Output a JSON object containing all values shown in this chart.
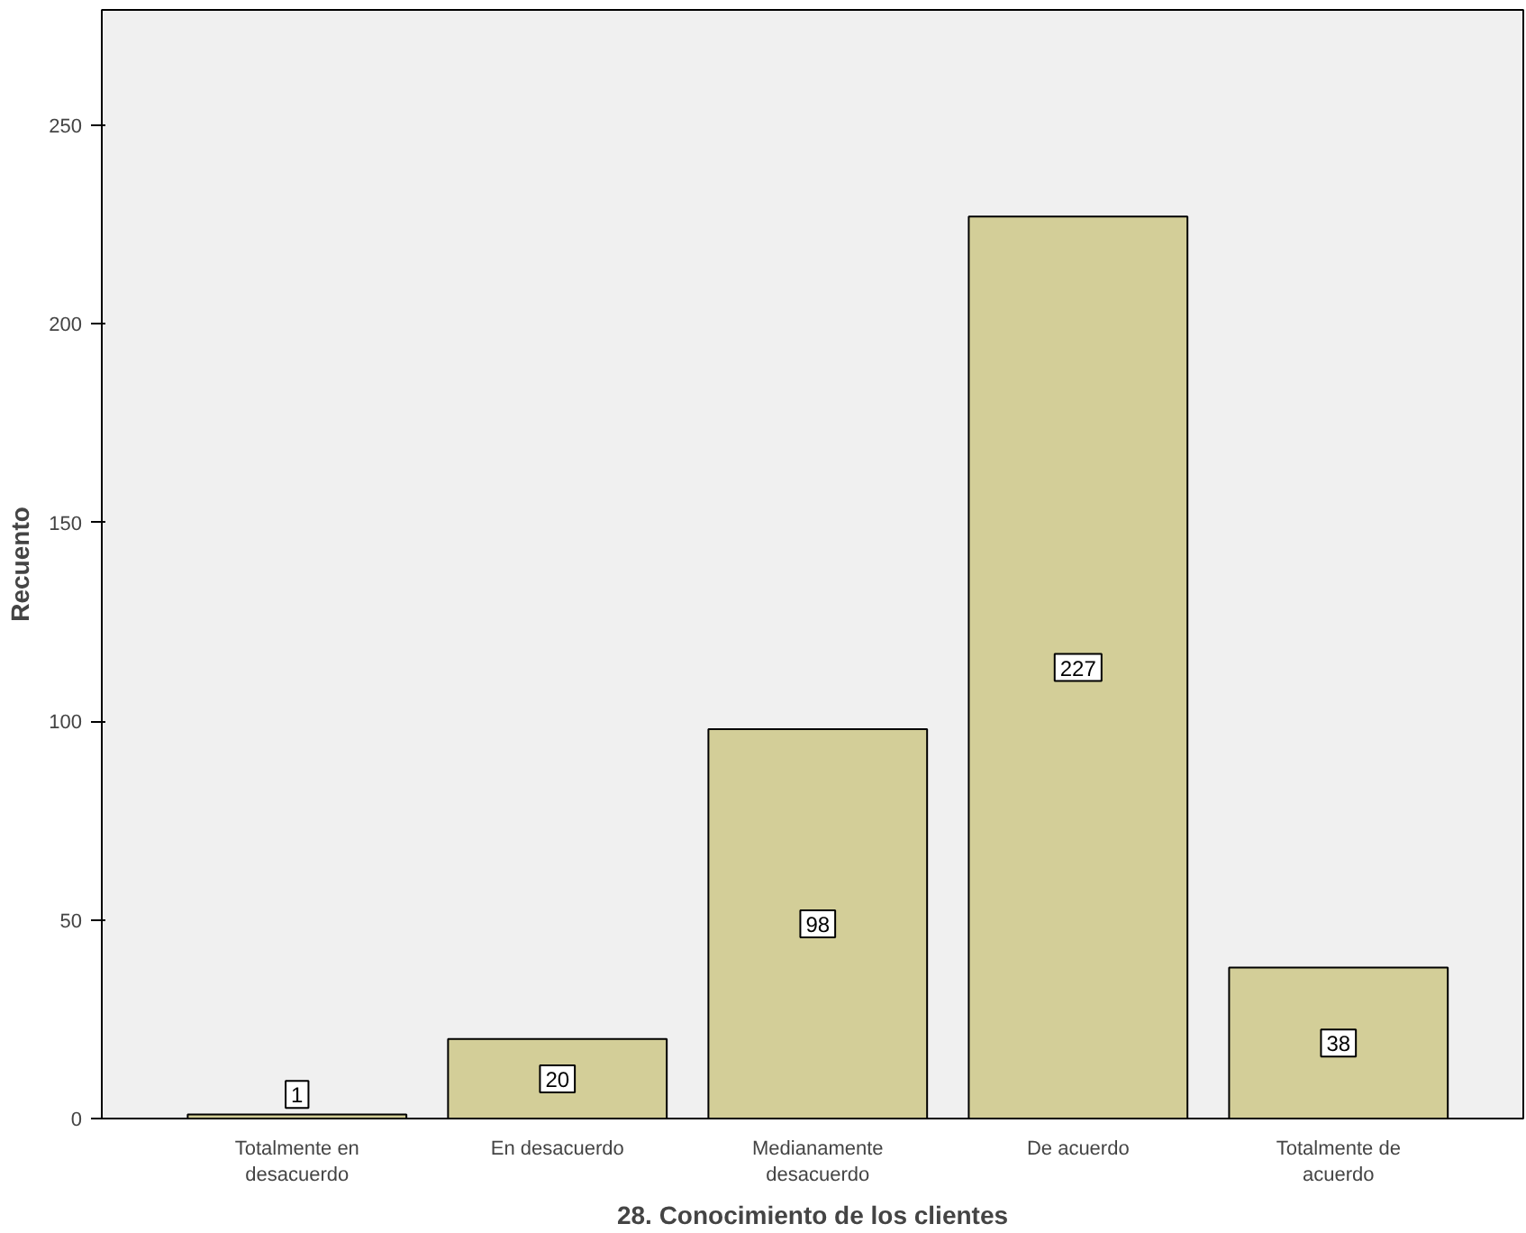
{
  "chart_data": {
    "type": "bar",
    "xlabel": "28. Conocimiento de los clientes",
    "ylabel": "Recuento",
    "categories": [
      "Totalmente en\ndesacuerdo",
      "En desacuerdo",
      "Medianamente\ndesacuerdo",
      "De acuerdo",
      "Totalmente de\nacuerdo"
    ],
    "values": [
      1,
      20,
      98,
      227,
      38
    ],
    "color": "#d3ce98",
    "ylim": [
      0,
      279
    ],
    "yticks": [
      0,
      50,
      100,
      150,
      200,
      250
    ],
    "grid": false,
    "data_labels": true
  }
}
